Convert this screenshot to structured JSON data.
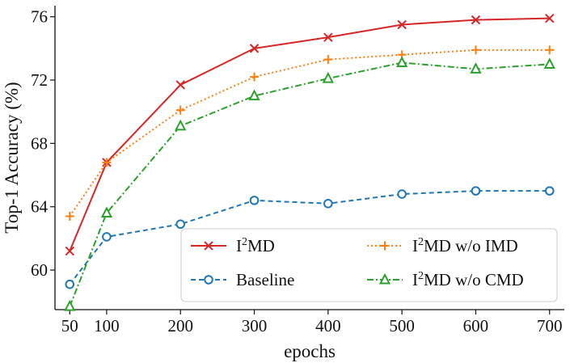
{
  "chart_data": {
    "type": "line",
    "xlabel": "epochs",
    "ylabel": "Top-1 Accuracy (%)",
    "x": [
      50,
      100,
      200,
      300,
      400,
      500,
      600,
      700
    ],
    "xlim": [
      30,
      720
    ],
    "ylim": [
      57.5,
      76.7
    ],
    "xticks": [
      50,
      100,
      200,
      300,
      400,
      500,
      600,
      700
    ],
    "yticks": [
      60,
      64,
      68,
      72,
      76
    ],
    "legend_position": "lower-right",
    "series": [
      {
        "name": "I²MD",
        "legend_base": "I",
        "legend_sup": "2",
        "legend_rest": "MD",
        "color": "#d62728",
        "marker": "x",
        "dash": "solid",
        "values": [
          61.2,
          66.8,
          71.7,
          74.0,
          74.7,
          75.5,
          75.8,
          75.9
        ]
      },
      {
        "name": "Baseline",
        "legend_base": "Baseline",
        "legend_sup": "",
        "legend_rest": "",
        "color": "#1f77b4",
        "marker": "circle",
        "dash": "dashed",
        "values": [
          59.1,
          62.1,
          62.9,
          64.4,
          64.2,
          64.8,
          65.0,
          65.0
        ]
      },
      {
        "name": "I²MD w/o IMD",
        "legend_base": "I",
        "legend_sup": "2",
        "legend_rest": "MD w/o IMD",
        "color": "#ff7f0e",
        "marker": "plus",
        "dash": "dotted",
        "values": [
          63.4,
          66.8,
          70.1,
          72.2,
          73.3,
          73.6,
          73.9,
          73.9
        ]
      },
      {
        "name": "I²MD w/o CMD",
        "legend_base": "I",
        "legend_sup": "2",
        "legend_rest": "MD w/o CMD",
        "color": "#2ca02c",
        "marker": "triangle",
        "dash": "dashdot",
        "values": [
          57.7,
          63.6,
          69.1,
          71.0,
          72.1,
          73.1,
          72.7,
          73.0
        ]
      }
    ]
  }
}
